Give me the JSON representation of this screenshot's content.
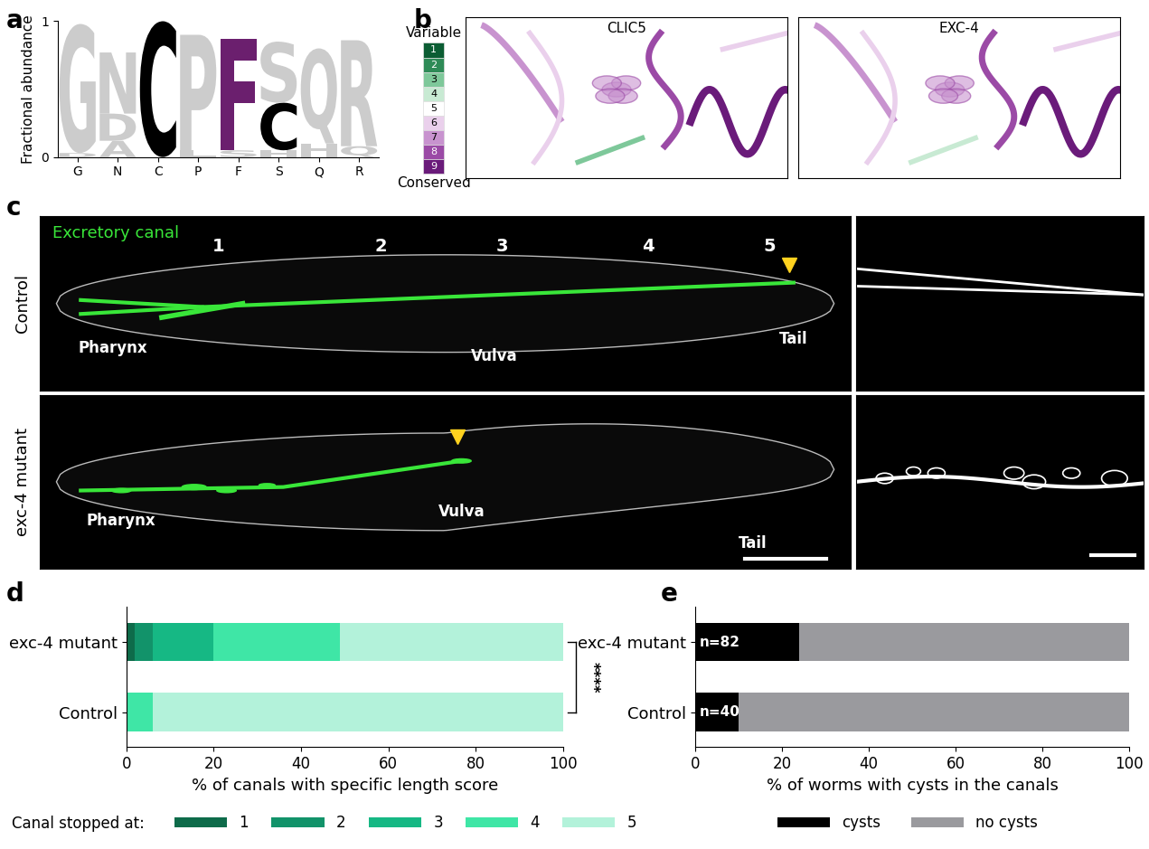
{
  "panel_labels": [
    "a",
    "b",
    "c",
    "d",
    "e"
  ],
  "logo": {
    "ylabel": "Fractional abundance",
    "ylim": [
      0,
      1
    ],
    "yticks": [
      0,
      1
    ],
    "categories": [
      "G",
      "N",
      "C",
      "P",
      "F",
      "S",
      "Q",
      "R"
    ],
    "stacks": [
      [
        {
          "letter": "D",
          "height": 0.03,
          "color": "#cccccc"
        },
        {
          "letter": "G",
          "height": 0.95,
          "color": "#cccccc"
        }
      ],
      [
        {
          "letter": "A",
          "height": 0.12,
          "color": "#cccccc"
        },
        {
          "letter": "D",
          "height": 0.2,
          "color": "#cccccc"
        },
        {
          "letter": "N",
          "height": 0.45,
          "color": "#cccccc"
        }
      ],
      [
        {
          "letter": "C",
          "height": 1.0,
          "color": "#000000"
        }
      ],
      [
        {
          "letter": "L",
          "height": 0.05,
          "color": "#cccccc"
        },
        {
          "letter": "P",
          "height": 0.85,
          "color": "#cccccc"
        }
      ],
      [
        {
          "letter": "S",
          "height": 0.05,
          "color": "#cccccc"
        },
        {
          "letter": "F",
          "height": 0.82,
          "color": "#6b1f6e"
        }
      ],
      [
        {
          "letter": "H",
          "height": 0.05,
          "color": "#cccccc"
        },
        {
          "letter": "C",
          "height": 0.35,
          "color": "#000000"
        },
        {
          "letter": "S",
          "height": 0.45,
          "color": "#cccccc"
        }
      ],
      [
        {
          "letter": "H",
          "height": 0.1,
          "color": "#cccccc"
        },
        {
          "letter": "Q",
          "height": 0.7,
          "color": "#cccccc"
        }
      ],
      [
        {
          "letter": "Q",
          "height": 0.08,
          "color": "#cccccc"
        },
        {
          "letter": "R",
          "height": 0.78,
          "color": "#cccccc"
        }
      ]
    ]
  },
  "conservation": {
    "top_label": "Variable",
    "bottom_label": "Conserved",
    "scale": [
      {
        "value": 1,
        "color": "#0b5d33"
      },
      {
        "value": 2,
        "color": "#2e8b57"
      },
      {
        "value": 3,
        "color": "#7ec89a"
      },
      {
        "value": 4,
        "color": "#c8ead3"
      },
      {
        "value": 5,
        "color": "#ffffff"
      },
      {
        "value": 6,
        "color": "#ead0ec"
      },
      {
        "value": 7,
        "color": "#c893cf"
      },
      {
        "value": 8,
        "color": "#9b4aa6"
      },
      {
        "value": 9,
        "color": "#6a1b7a"
      }
    ]
  },
  "structures": [
    "CLIC5",
    "EXC-4"
  ],
  "microscopy": {
    "legend_text": "Excretory canal",
    "segment_labels": [
      "1",
      "2",
      "3",
      "4",
      "5"
    ],
    "rows": [
      {
        "name": "Control",
        "labels": [
          "Pharynx",
          "Vulva",
          "Tail"
        ]
      },
      {
        "name": "exc-4 mutant",
        "labels": [
          "Pharynx",
          "Vulva",
          "Tail"
        ]
      }
    ]
  },
  "chart_data": [
    {
      "type": "bar",
      "orientation": "horizontal",
      "stacked": true,
      "categories": [
        "exc-4 mutant",
        "Control"
      ],
      "xlabel": "% of canals with specific length score",
      "xlim": [
        0,
        100
      ],
      "xticks": [
        0,
        20,
        40,
        60,
        80,
        100
      ],
      "legend": "lower left",
      "legend_title": "Canal stopped at:",
      "annotation": "****",
      "series": [
        {
          "name": "1",
          "color": "#0e6b4a",
          "values": [
            2,
            0
          ]
        },
        {
          "name": "2",
          "color": "#12936a",
          "values": [
            4,
            0
          ]
        },
        {
          "name": "3",
          "color": "#16b884",
          "values": [
            14,
            0
          ]
        },
        {
          "name": "4",
          "color": "#3fe6a6",
          "values": [
            29,
            6
          ]
        },
        {
          "name": "5",
          "color": "#b3f2da",
          "values": [
            51,
            94
          ]
        }
      ]
    },
    {
      "type": "bar",
      "orientation": "horizontal",
      "stacked": true,
      "categories": [
        "exc-4 mutant",
        "Control"
      ],
      "xlabel": "% of worms with cysts in the canals",
      "xlim": [
        0,
        100
      ],
      "xticks": [
        0,
        20,
        40,
        60,
        80,
        100
      ],
      "legend": "lower center",
      "annotations": [
        "n=82",
        "n=40"
      ],
      "series": [
        {
          "name": "cysts",
          "color": "#000000",
          "values": [
            24,
            10
          ]
        },
        {
          "name": "no cysts",
          "color": "#9a9a9e",
          "values": [
            76,
            90
          ]
        }
      ]
    }
  ]
}
